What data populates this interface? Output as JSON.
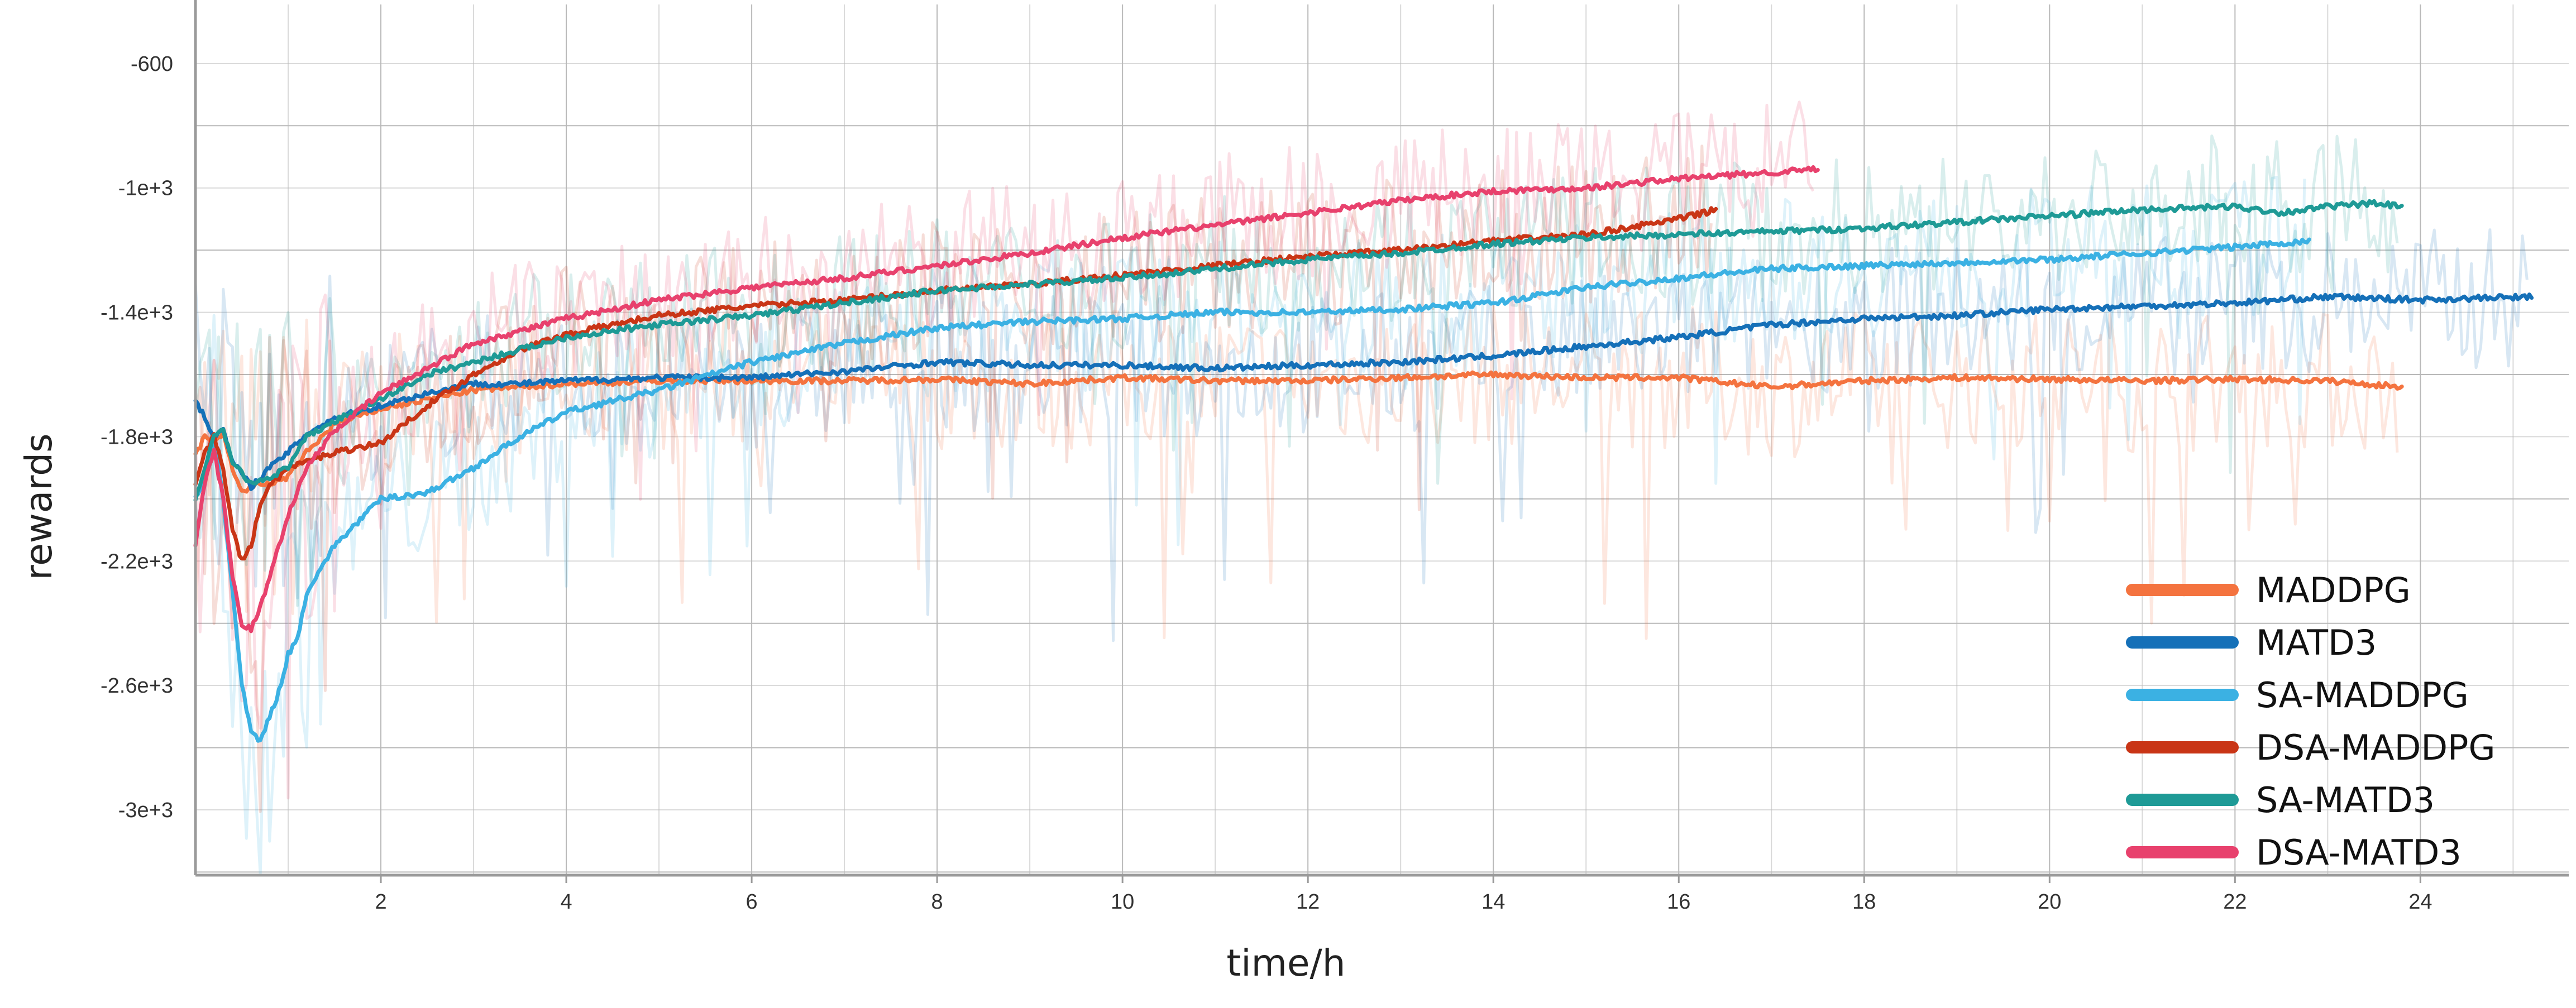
{
  "chart_data": {
    "type": "line",
    "title": "",
    "xlabel": "time/h",
    "ylabel": "rewards",
    "xlim": [
      0,
      25.6
    ],
    "ylim": [
      -3210,
      -410
    ],
    "xticks": [
      2,
      4,
      6,
      8,
      10,
      12,
      14,
      16,
      18,
      20,
      22,
      24
    ],
    "xtick_labels": [
      "2",
      "4",
      "6",
      "8",
      "10",
      "12",
      "14",
      "16",
      "18",
      "20",
      "22",
      "24"
    ],
    "yticks": [
      -600,
      -1000,
      -1400,
      -1800,
      -2200,
      -2600,
      -3000
    ],
    "ytick_labels": [
      "-600",
      "-1e+3",
      "-1.4e+3",
      "-1.8e+3",
      "-2.2e+3",
      "-2.6e+3",
      "-3e+3"
    ],
    "grid": true,
    "legend_position": "bottom-right",
    "series": [
      {
        "name": "MADDPG",
        "color": "#f4733f",
        "x": [
          0,
          0.1,
          0.2,
          0.3,
          0.4,
          0.5,
          0.6,
          0.8,
          1.0,
          1.2,
          1.5,
          2.0,
          2.5,
          3.0,
          3.5,
          4.0,
          5.0,
          6.0,
          7.0,
          8.0,
          9.0,
          10.0,
          11.0,
          12.0,
          13.0,
          14.0,
          15.0,
          16.0,
          17.0,
          18.0,
          19.0,
          20.0,
          21.0,
          22.0,
          23.0,
          23.8
        ],
        "y": [
          -1860,
          -1800,
          -1820,
          -1790,
          -1900,
          -1980,
          -1960,
          -1950,
          -1930,
          -1850,
          -1760,
          -1710,
          -1680,
          -1650,
          -1640,
          -1630,
          -1620,
          -1620,
          -1620,
          -1615,
          -1630,
          -1610,
          -1620,
          -1620,
          -1610,
          -1600,
          -1610,
          -1610,
          -1640,
          -1620,
          -1610,
          -1615,
          -1620,
          -1615,
          -1620,
          -1640
        ]
      },
      {
        "name": "MATD3",
        "color": "#1570b8",
        "x": [
          0,
          0.1,
          0.2,
          0.3,
          0.4,
          0.5,
          0.6,
          0.8,
          1.0,
          1.2,
          1.5,
          2.0,
          2.5,
          3.0,
          3.5,
          4.0,
          5.0,
          6.0,
          7.0,
          8.0,
          9.0,
          10.0,
          11.0,
          12.0,
          13.0,
          14.0,
          15.0,
          16.0,
          17.0,
          18.0,
          19.0,
          20.0,
          21.0,
          22.0,
          23.0,
          24.0,
          25.2
        ],
        "y": [
          -1680,
          -1740,
          -1800,
          -1780,
          -1880,
          -1920,
          -1960,
          -1900,
          -1850,
          -1790,
          -1740,
          -1700,
          -1660,
          -1630,
          -1630,
          -1620,
          -1610,
          -1610,
          -1590,
          -1560,
          -1570,
          -1570,
          -1580,
          -1570,
          -1560,
          -1540,
          -1510,
          -1480,
          -1440,
          -1420,
          -1410,
          -1390,
          -1380,
          -1370,
          -1350,
          -1360,
          -1350
        ]
      },
      {
        "name": "SA-MADDPG",
        "color": "#3bb1e3",
        "x": [
          0,
          0.1,
          0.2,
          0.3,
          0.4,
          0.5,
          0.6,
          0.7,
          0.8,
          0.9,
          1.0,
          1.1,
          1.2,
          1.5,
          1.8,
          2.0,
          2.5,
          3.0,
          3.5,
          4.0,
          5.0,
          6.0,
          7.0,
          8.0,
          9.0,
          10.0,
          11.0,
          12.0,
          13.0,
          14.0,
          15.0,
          16.0,
          17.0,
          18.0,
          19.0,
          20.0,
          21.0,
          22.0,
          22.8
        ],
        "y": [
          -2000,
          -1950,
          -1800,
          -2000,
          -2300,
          -2600,
          -2750,
          -2780,
          -2700,
          -2620,
          -2500,
          -2450,
          -2300,
          -2150,
          -2060,
          -2000,
          -1980,
          -1900,
          -1800,
          -1720,
          -1650,
          -1560,
          -1500,
          -1450,
          -1430,
          -1420,
          -1400,
          -1400,
          -1390,
          -1370,
          -1320,
          -1290,
          -1260,
          -1250,
          -1240,
          -1230,
          -1210,
          -1190,
          -1170
        ]
      },
      {
        "name": "DSA-MADDPG",
        "color": "#c93516",
        "x": [
          0,
          0.1,
          0.2,
          0.3,
          0.4,
          0.5,
          0.6,
          0.7,
          0.8,
          0.9,
          1.0,
          1.2,
          1.5,
          2.0,
          2.5,
          3.0,
          3.5,
          4.0,
          5.0,
          6.0,
          7.0,
          8.0,
          9.0,
          10.0,
          11.0,
          12.0,
          13.0,
          14.0,
          15.0,
          16.0,
          16.4
        ],
        "y": [
          -1950,
          -1850,
          -1800,
          -1900,
          -2100,
          -2200,
          -2150,
          -2020,
          -1950,
          -1930,
          -1900,
          -1880,
          -1850,
          -1820,
          -1700,
          -1600,
          -1520,
          -1470,
          -1410,
          -1380,
          -1360,
          -1330,
          -1310,
          -1280,
          -1250,
          -1220,
          -1200,
          -1170,
          -1150,
          -1100,
          -1070
        ]
      },
      {
        "name": "SA-MATD3",
        "color": "#1e9a96",
        "x": [
          0,
          0.1,
          0.2,
          0.3,
          0.4,
          0.5,
          0.6,
          0.8,
          1.0,
          1.2,
          1.5,
          2.0,
          2.5,
          3.0,
          3.5,
          4.0,
          5.0,
          6.0,
          7.0,
          8.0,
          9.0,
          10.0,
          11.0,
          12.0,
          13.0,
          14.0,
          15.0,
          16.0,
          17.0,
          18.0,
          19.0,
          20.0,
          21.0,
          22.0,
          22.5,
          23.0,
          23.5,
          23.8
        ],
        "y": [
          -2000,
          -1900,
          -1800,
          -1780,
          -1880,
          -1920,
          -1950,
          -1930,
          -1900,
          -1800,
          -1750,
          -1680,
          -1600,
          -1560,
          -1520,
          -1480,
          -1440,
          -1410,
          -1370,
          -1330,
          -1310,
          -1290,
          -1260,
          -1230,
          -1210,
          -1180,
          -1160,
          -1150,
          -1140,
          -1130,
          -1110,
          -1090,
          -1070,
          -1060,
          -1080,
          -1060,
          -1050,
          -1060
        ]
      },
      {
        "name": "DSA-MATD3",
        "color": "#e8416d",
        "x": [
          0,
          0.1,
          0.2,
          0.3,
          0.4,
          0.5,
          0.6,
          0.7,
          0.8,
          0.9,
          1.0,
          1.2,
          1.5,
          2.0,
          2.5,
          3.0,
          3.5,
          4.0,
          5.0,
          6.0,
          7.0,
          8.0,
          9.0,
          10.0,
          11.0,
          12.0,
          13.0,
          14.0,
          15.0,
          16.0,
          17.0,
          17.5
        ],
        "y": [
          -2150,
          -1950,
          -1850,
          -2000,
          -2250,
          -2400,
          -2420,
          -2350,
          -2250,
          -2150,
          -2050,
          -1900,
          -1780,
          -1660,
          -1580,
          -1500,
          -1460,
          -1420,
          -1360,
          -1320,
          -1290,
          -1250,
          -1210,
          -1160,
          -1120,
          -1080,
          -1040,
          -1010,
          -1000,
          -970,
          -950,
          -940
        ]
      }
    ]
  }
}
